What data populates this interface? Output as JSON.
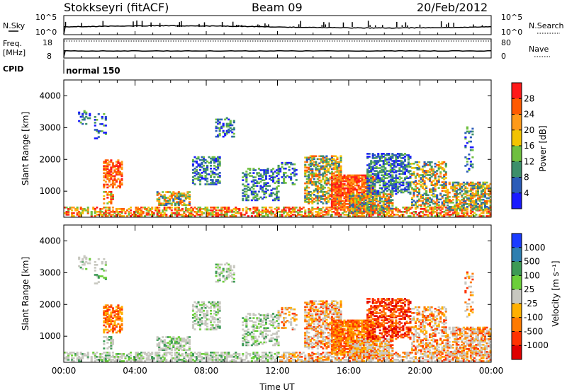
{
  "header": {
    "station": "Stokkseyri (fitACF)",
    "beam": "Beam 09",
    "date": "20/Feb/2012"
  },
  "status_panels": {
    "nsky_label": "N.Sky",
    "nsearch_label": "N.Search",
    "noise_ticks_left": [
      "10^5",
      "10^0"
    ],
    "noise_ticks_right": [
      "10^5",
      "10^0"
    ],
    "freq_label": "Freq.",
    "freq_unit": "[MHz]",
    "freq_ticks": [
      "18",
      "8"
    ],
    "nave_label": "Nave",
    "nave_ticks": [
      "80",
      "0"
    ],
    "cpid_label": "CPID",
    "cpid_value": "normal 150"
  },
  "chart_data": [
    {
      "type": "heatmap",
      "name": "power-panel",
      "ylabel": "Slant Range [km]",
      "xlabel": "",
      "yticks": [
        "1000",
        "2000",
        "3000",
        "4000"
      ],
      "ylim": [
        180,
        4500
      ],
      "xlim_hours": [
        0,
        24
      ],
      "colorbar": {
        "label": "Power [dB]",
        "ticks": [
          "4",
          "8",
          "12",
          "16",
          "20",
          "24",
          "28"
        ],
        "colors": [
          "#1a1aff",
          "#2b5cb8",
          "#3d8f6a",
          "#6fbf3f",
          "#f2c300",
          "#ff9a1a",
          "#ff5a00",
          "#ff1a1a"
        ]
      }
    },
    {
      "type": "heatmap",
      "name": "velocity-panel",
      "ylabel": "Slant Range [km]",
      "xlabel": "Time UT",
      "xticks": [
        "00:00",
        "04:00",
        "08:00",
        "12:00",
        "16:00",
        "20:00",
        "00:00"
      ],
      "yticks": [
        "1000",
        "2000",
        "3000",
        "4000"
      ],
      "ylim": [
        180,
        4500
      ],
      "xlim_hours": [
        0,
        24
      ],
      "colorbar": {
        "label": "Velocity [m s⁻¹]",
        "ticks": [
          "1000",
          "500",
          "100",
          "25",
          "-25",
          "-100",
          "-500",
          "-1000"
        ],
        "colors": [
          "#1a3cff",
          "#2e7fb0",
          "#3d9a55",
          "#6ccf3a",
          "#c8c8c0",
          "#ffb000",
          "#ff7a00",
          "#ff3300",
          "#e00000"
        ]
      }
    }
  ]
}
